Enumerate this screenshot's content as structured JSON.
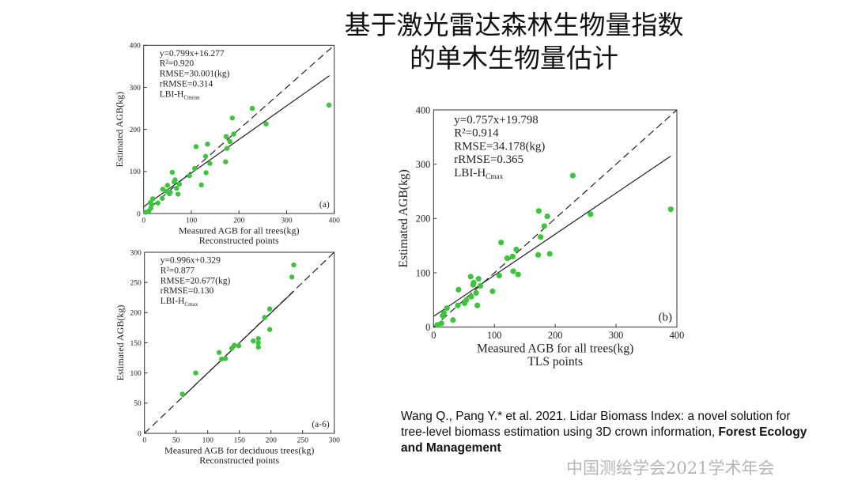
{
  "slide": {
    "title_line1": "基于激光雷达森林生物量指数",
    "title_line2": "的单木生物量估计",
    "citation": {
      "text": "Wang Q., Pang Y.* et al. 2021. Lidar Biomass Index: a novel solution for tree-level biomass estimation using 3D crown information, ",
      "journal": "Forest Ecology and Management"
    },
    "watermark": "中国测绘学会2021学术年会"
  },
  "colors": {
    "points": "#3cc43c",
    "lines": "#222222",
    "background": "#ffffff"
  },
  "chart_data": [
    {
      "type": "scatter",
      "panel": "(a)",
      "xlabel": "Measured AGB for all trees(kg)",
      "subtitle": "Reconstructed points",
      "ylabel": "Estimated AGB(kg)",
      "xlim": [
        0,
        400
      ],
      "ylim": [
        0,
        400
      ],
      "xticks": [
        0,
        100,
        200,
        300,
        400
      ],
      "yticks": [
        0,
        100,
        200,
        300,
        400
      ],
      "stats": [
        "y=0.799x+16.277",
        "R²=0.920",
        "RMSE=30.001(kg)",
        "rRMSE=0.314"
      ],
      "model": {
        "base": "LBI-H",
        "sub": "Cmean"
      },
      "fit": {
        "slope": 0.799,
        "intercept": 16.277,
        "x_range": [
          0,
          390
        ]
      },
      "reference_line": "1:1 dashed",
      "points": [
        [
          389,
          258
        ],
        [
          228,
          250
        ],
        [
          257,
          213
        ],
        [
          186,
          227
        ],
        [
          173,
          183
        ],
        [
          189,
          189
        ],
        [
          181,
          171
        ],
        [
          175,
          155
        ],
        [
          172,
          123
        ],
        [
          134,
          165
        ],
        [
          130,
          136
        ],
        [
          139,
          119
        ],
        [
          131,
          97
        ],
        [
          121,
          68
        ],
        [
          110,
          159
        ],
        [
          107,
          107
        ],
        [
          96,
          90
        ],
        [
          60,
          98
        ],
        [
          75,
          70
        ],
        [
          72,
          46
        ],
        [
          64,
          75
        ],
        [
          66,
          80
        ],
        [
          69,
          60
        ],
        [
          56,
          50
        ],
        [
          50,
          67
        ],
        [
          54,
          47
        ],
        [
          48,
          53
        ],
        [
          40,
          58
        ],
        [
          39,
          36
        ],
        [
          30,
          25
        ],
        [
          19,
          35
        ],
        [
          14,
          26
        ],
        [
          15,
          13
        ],
        [
          11,
          6
        ],
        [
          4,
          3
        ],
        [
          17,
          22
        ]
      ]
    },
    {
      "type": "scatter",
      "panel": "(a-6)",
      "xlabel": "Measured AGB for deciduous trees(kg)",
      "subtitle": "Reconstructed points",
      "ylabel": "Estimated AGB(kg)",
      "xlim": [
        0,
        300
      ],
      "ylim": [
        0,
        300
      ],
      "xticks": [
        0,
        50,
        100,
        150,
        200,
        250,
        300
      ],
      "yticks": [
        0,
        50,
        100,
        150,
        200,
        250,
        300
      ],
      "stats": [
        "y=0.996x+0.329",
        "R²=0.877",
        "RMSE=20.677(kg)",
        "rRMSE=0.130"
      ],
      "model": {
        "base": "LBI-H",
        "sub": "Cmax"
      },
      "fit": {
        "slope": 0.996,
        "intercept": 0.329,
        "x_range": [
          60,
          236
        ]
      },
      "reference_line": "1:1 dashed",
      "points": [
        [
          236,
          279
        ],
        [
          233,
          259
        ],
        [
          198,
          206
        ],
        [
          190,
          192
        ],
        [
          198,
          172
        ],
        [
          172,
          153
        ],
        [
          180,
          157
        ],
        [
          180,
          150
        ],
        [
          180,
          143
        ],
        [
          149,
          145
        ],
        [
          142,
          146
        ],
        [
          138,
          141
        ],
        [
          118,
          134
        ],
        [
          122,
          123
        ],
        [
          128,
          124
        ],
        [
          81,
          100
        ],
        [
          60,
          65
        ]
      ]
    },
    {
      "type": "scatter",
      "panel": "(b)",
      "xlabel": "Measured AGB for all trees(kg)",
      "subtitle": "TLS points",
      "ylabel": "Estimated AGB(kg)",
      "xlim": [
        0,
        400
      ],
      "ylim": [
        0,
        400
      ],
      "xticks": [
        0,
        100,
        200,
        300,
        400
      ],
      "yticks": [
        0,
        100,
        200,
        300,
        400
      ],
      "stats": [
        "y=0.757x+19.798",
        "R²=0.914",
        "RMSE=34.178(kg)",
        "rRMSE=0.365"
      ],
      "model": {
        "base": "LBI-H",
        "sub": "Cmax"
      },
      "fit": {
        "slope": 0.757,
        "intercept": 19.798,
        "x_range": [
          0,
          390
        ]
      },
      "reference_line": "1:1 dashed",
      "points": [
        [
          390,
          217
        ],
        [
          229,
          279
        ],
        [
          258,
          208
        ],
        [
          173,
          214
        ],
        [
          187,
          204
        ],
        [
          182,
          186
        ],
        [
          176,
          166
        ],
        [
          172,
          133
        ],
        [
          191,
          135
        ],
        [
          136,
          143
        ],
        [
          130,
          130
        ],
        [
          121,
          127
        ],
        [
          111,
          156
        ],
        [
          131,
          103
        ],
        [
          139,
          97
        ],
        [
          108,
          95
        ],
        [
          97,
          66
        ],
        [
          74,
          89
        ],
        [
          77,
          76
        ],
        [
          61,
          93
        ],
        [
          65,
          78
        ],
        [
          66,
          82
        ],
        [
          70,
          63
        ],
        [
          72,
          40
        ],
        [
          62,
          56
        ],
        [
          54,
          50
        ],
        [
          51,
          44
        ],
        [
          41,
          69
        ],
        [
          40,
          40
        ],
        [
          22,
          35
        ],
        [
          15,
          21
        ],
        [
          17,
          26
        ],
        [
          13,
          7
        ],
        [
          32,
          13
        ],
        [
          6,
          4
        ]
      ]
    }
  ]
}
